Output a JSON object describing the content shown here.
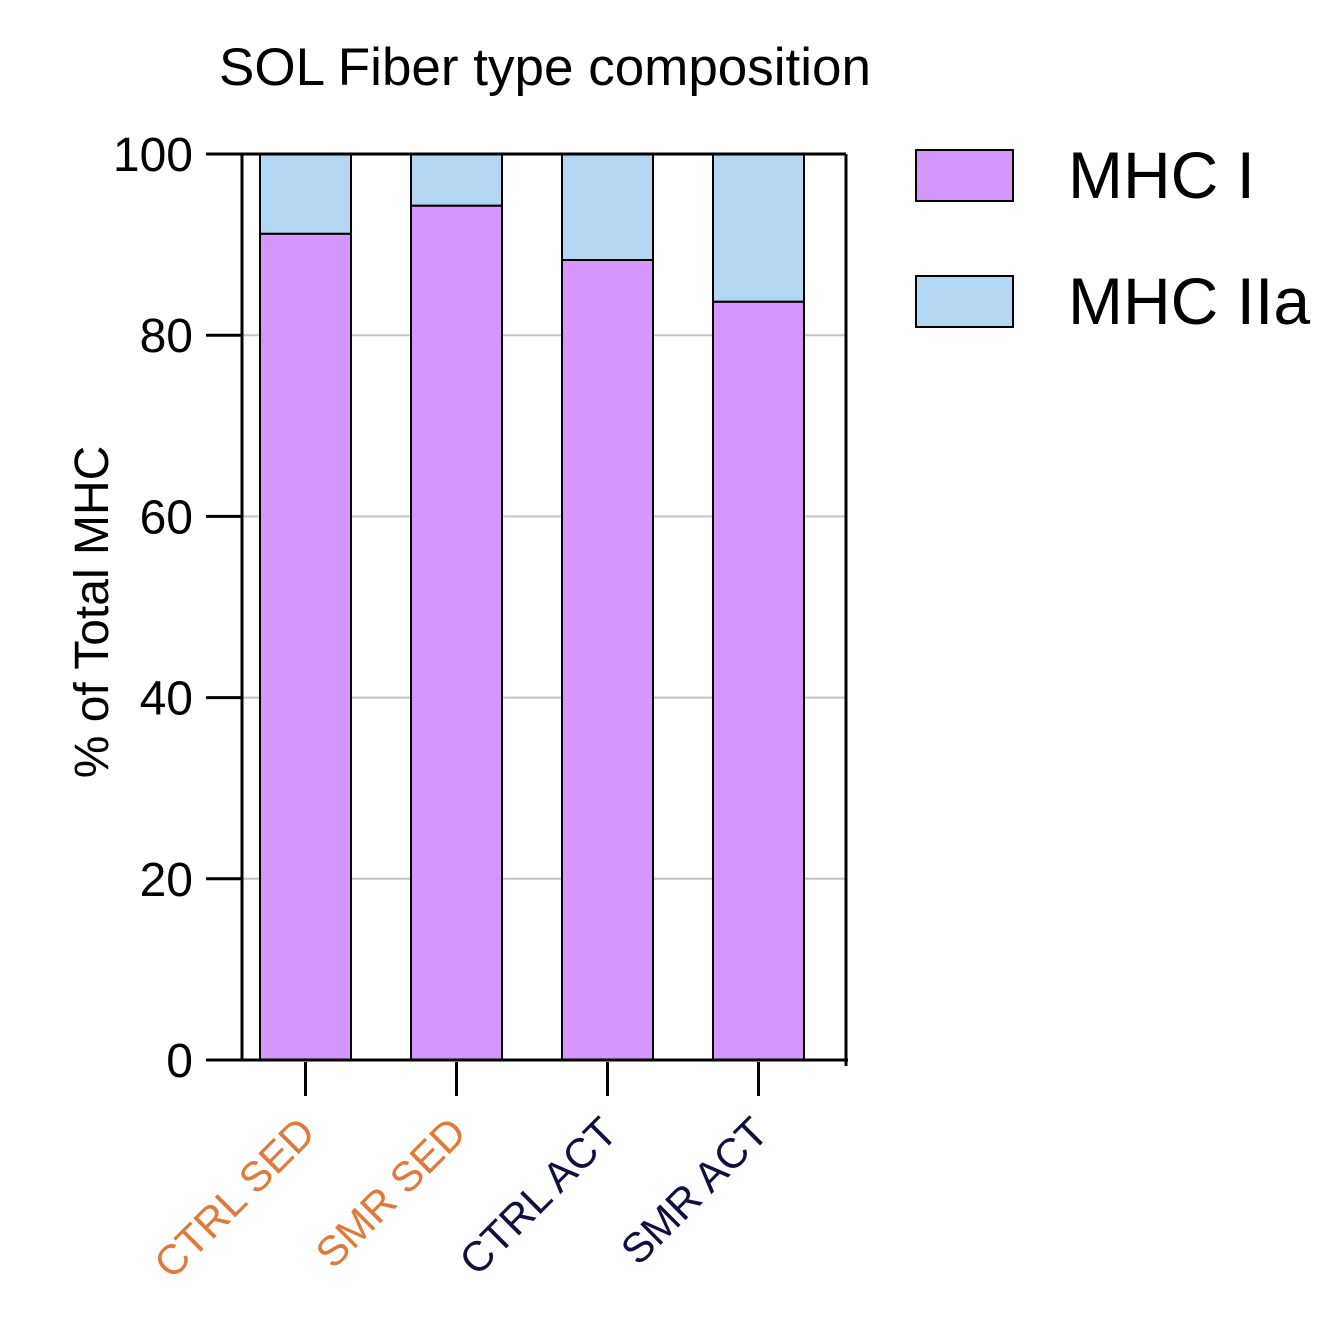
{
  "chart_data": {
    "type": "bar",
    "stacked": true,
    "title": "SOL Fiber type composition",
    "xlabel": "",
    "ylabel": "% of Total MHC",
    "ylim": [
      0,
      100
    ],
    "yticks": [
      0,
      20,
      40,
      60,
      80,
      100
    ],
    "grid": true,
    "legend_position": "right",
    "categories": [
      "CTRL SED",
      "SMR SED",
      "CTRL ACT",
      "SMR ACT"
    ],
    "category_colors": [
      "#e07a3a",
      "#e07a3a",
      "#0f1040",
      "#0f1040"
    ],
    "series": [
      {
        "name": "MHC I",
        "color": "#d596fd",
        "values": [
          91.2,
          94.3,
          88.3,
          83.7
        ]
      },
      {
        "name": "MHC IIa",
        "color": "#b3d7f2",
        "values": [
          8.8,
          5.7,
          11.7,
          16.3
        ]
      }
    ]
  }
}
